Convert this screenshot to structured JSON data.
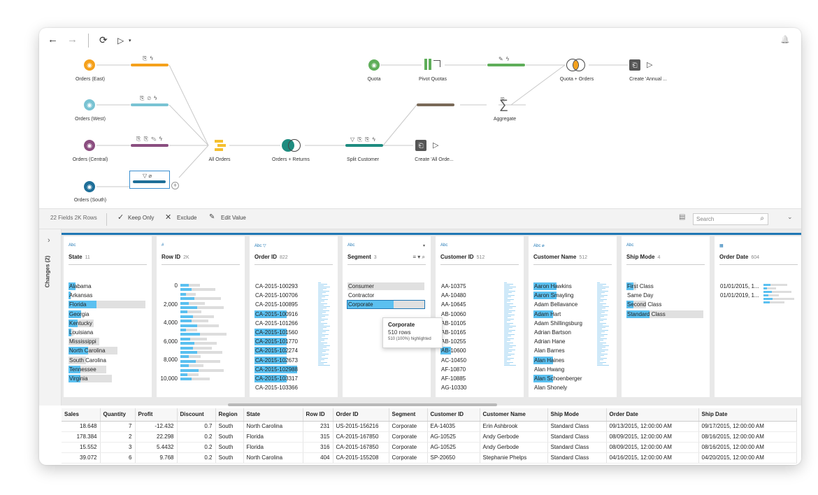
{
  "colors": {
    "east": "#f5a11c",
    "west": "#79c3d3",
    "central": "#8b4e80",
    "south": "#1f6f99",
    "green": "#5fae5a",
    "teal": "#1e8c80",
    "brown": "#7a6a58",
    "yellow": "#f5c030",
    "highlight": "#5bc0f0",
    "accent_line": "#1f77b4"
  },
  "toolbar": {
    "back_icon": "←",
    "forward_icon": "→",
    "refresh_icon": "⟳",
    "run_icon": "▷",
    "run_menu_icon": "▾",
    "bell_icon": "🔔"
  },
  "flow": {
    "nodes": [
      {
        "label": "Orders (East)"
      },
      {
        "label": "Orders (West)"
      },
      {
        "label": "Orders (Central)"
      },
      {
        "label": "Orders (South)"
      },
      {
        "label": "All Orders"
      },
      {
        "label": "Orders + Returns"
      },
      {
        "label": "Split Customer"
      },
      {
        "label": "Create 'All Orde..."
      },
      {
        "label": "Quota"
      },
      {
        "label": "Pivot Quotas"
      },
      {
        "label": "Aggregate"
      },
      {
        "label": "Quota + Orders"
      },
      {
        "label": "Create 'Annual ..."
      }
    ],
    "aggregate_symbol": "∑",
    "plus_symbol": "+",
    "output_symbol": "▷"
  },
  "profile_bar": {
    "summary": "22 Fields  2K Rows",
    "keep_only": "Keep Only",
    "exclude": "Exclude",
    "edit_value": "Edit Value",
    "search_placeholder": "Search"
  },
  "rail": {
    "label": "Changes (2)",
    "expand": "›"
  },
  "cards": [
    {
      "type": "Abc",
      "name": "State",
      "count": "11",
      "values": [
        {
          "text": "Alabama",
          "w": 0.09,
          "hl": 0.09
        },
        {
          "text": "Arkansas",
          "w": 0.04,
          "hl": 0.03
        },
        {
          "text": "Florida",
          "w": 1.0,
          "hl": 0.36
        },
        {
          "text": "Georgia",
          "w": 0.16,
          "hl": 0.16
        },
        {
          "text": "Kentucky",
          "w": 0.33,
          "hl": 0.12
        },
        {
          "text": "Louisiana",
          "w": 0.06,
          "hl": 0.04
        },
        {
          "text": "Mississippi",
          "w": 0.4,
          "hl": 0.0
        },
        {
          "text": "North Carolina",
          "w": 0.64,
          "hl": 0.25
        },
        {
          "text": "South Carolina",
          "w": 0.23,
          "hl": 0.0
        },
        {
          "text": "Tennessee",
          "w": 0.49,
          "hl": 0.15
        },
        {
          "text": "Virginia",
          "w": 0.56,
          "hl": 0.15
        }
      ]
    },
    {
      "type": "#",
      "name": "Row ID",
      "count": "2K",
      "ticks": [
        "0",
        "2,000",
        "4,000",
        "6,000",
        "8,000",
        "10,000"
      ]
    },
    {
      "type": "Abc ▽",
      "name": "Order ID",
      "count": "822",
      "values": [
        {
          "text": "CA-2015-100293",
          "hl": 0.0
        },
        {
          "text": "CA-2015-100706",
          "hl": 0.0
        },
        {
          "text": "CA-2015-100895",
          "hl": 0.0
        },
        {
          "text": "CA-2015-100916",
          "hl": 0.42
        },
        {
          "text": "CA-2015-101266",
          "hl": 0.0
        },
        {
          "text": "CA-2015-101560",
          "hl": 0.42
        },
        {
          "text": "CA-2015-101770",
          "hl": 0.42
        },
        {
          "text": "CA-2015-102274",
          "hl": 0.42
        },
        {
          "text": "CA-2015-102673",
          "hl": 0.42
        },
        {
          "text": "CA-2015-102988",
          "hl": 0.55
        },
        {
          "text": "CA-2015-103317",
          "hl": 0.42
        },
        {
          "text": "CA-2015-103366",
          "hl": 0.0
        }
      ]
    },
    {
      "type": "Abc",
      "name": "Segment",
      "count": "3",
      "values": [
        {
          "text": "Consumer",
          "w": 1.0,
          "hl": 0.0
        },
        {
          "text": "Contractor",
          "w": 0.0,
          "hl": 0.0
        },
        {
          "text": "Corporate",
          "w": 1.0,
          "hl": 0.6
        }
      ]
    },
    {
      "type": "Abc",
      "name": "Customer ID",
      "count": "512",
      "values": [
        {
          "text": "AA-10375",
          "hl": 0.0
        },
        {
          "text": "AA-10480",
          "hl": 0.0
        },
        {
          "text": "AA-10645",
          "hl": 0.0
        },
        {
          "text": "AB-10060",
          "hl": 0.0
        },
        {
          "text": "AB-10105",
          "hl": 0.0
        },
        {
          "text": "AB-10165",
          "hl": 0.0
        },
        {
          "text": "AB-10255",
          "hl": 0.0
        },
        {
          "text": "AB-10600",
          "hl": 0.14
        },
        {
          "text": "AC-10450",
          "hl": 0.0
        },
        {
          "text": "AF-10870",
          "hl": 0.0
        },
        {
          "text": "AF-10885",
          "hl": 0.0
        },
        {
          "text": "AG-10330",
          "hl": 0.0
        }
      ]
    },
    {
      "type": "Abc ⌀",
      "name": "Customer Name",
      "count": "512",
      "values": [
        {
          "text": "Aaron Hawkins",
          "hl": 0.3
        },
        {
          "text": "Aaron Smayling",
          "hl": 0.3
        },
        {
          "text": "Adam Bellavance",
          "hl": 0.0
        },
        {
          "text": "Adam Hart",
          "hl": 0.25
        },
        {
          "text": "Adam Shillingsburg",
          "hl": 0.0
        },
        {
          "text": "Adrian Bartson",
          "hl": 0.0
        },
        {
          "text": "Adrian Hane",
          "hl": 0.0
        },
        {
          "text": "Alan Barnes",
          "hl": 0.0
        },
        {
          "text": "Alan Haines",
          "hl": 0.25
        },
        {
          "text": "Alan Hwang",
          "hl": 0.0
        },
        {
          "text": "Alan Schoenberger",
          "hl": 0.25
        },
        {
          "text": "Alan Shonely",
          "hl": 0.0
        }
      ]
    },
    {
      "type": "Abc",
      "name": "Ship Mode",
      "count": "4",
      "values": [
        {
          "text": "First Class",
          "w": 0.13,
          "hl": 0.09
        },
        {
          "text": "Same Day",
          "w": 0.0,
          "hl": 0.0
        },
        {
          "text": "Second Class",
          "w": 0.25,
          "hl": 0.09
        },
        {
          "text": "Standard Class",
          "w": 1.0,
          "hl": 0.3
        }
      ]
    },
    {
      "type": "▦",
      "name": "Order Date",
      "count": "604",
      "values": [
        {
          "text": "01/01/2015, 1..."
        },
        {
          "text": "01/01/2019, 1..."
        }
      ]
    }
  ],
  "tooltip": {
    "title": "Corporate",
    "rows": "510 rows",
    "highlighted": "510 (100%) highlighted"
  },
  "table": {
    "columns": [
      "Sales",
      "Quantity",
      "Profit",
      "Discount",
      "Region",
      "State",
      "Row ID",
      "Order ID",
      "Segment",
      "Customer ID",
      "Customer Name",
      "Ship Mode",
      "Order Date",
      "Ship Date"
    ],
    "rows": [
      [
        "18.648",
        "7",
        "-12.432",
        "0.7",
        "South",
        "North Carolina",
        "231",
        "US-2015-156216",
        "Corporate",
        "EA-14035",
        "Erin Ashbrook",
        "Standard Class",
        "09/13/2015, 12:00:00 AM",
        "09/17/2015, 12:00:00 AM"
      ],
      [
        "178.384",
        "2",
        "22.298",
        "0.2",
        "South",
        "Florida",
        "315",
        "CA-2015-167850",
        "Corporate",
        "AG-10525",
        "Andy Gerbode",
        "Standard Class",
        "08/09/2015, 12:00:00 AM",
        "08/16/2015, 12:00:00 AM"
      ],
      [
        "15.552",
        "3",
        "5.4432",
        "0.2",
        "South",
        "Florida",
        "316",
        "CA-2015-167850",
        "Corporate",
        "AG-10525",
        "Andy Gerbode",
        "Standard Class",
        "08/09/2015, 12:00:00 AM",
        "08/16/2015, 12:00:00 AM"
      ],
      [
        "39.072",
        "6",
        "9.768",
        "0.2",
        "South",
        "North Carolina",
        "404",
        "CA-2015-155208",
        "Corporate",
        "SP-20650",
        "Stephanie Phelps",
        "Standard Class",
        "04/16/2015, 12:00:00 AM",
        "04/20/2015, 12:00:00 AM"
      ]
    ]
  }
}
